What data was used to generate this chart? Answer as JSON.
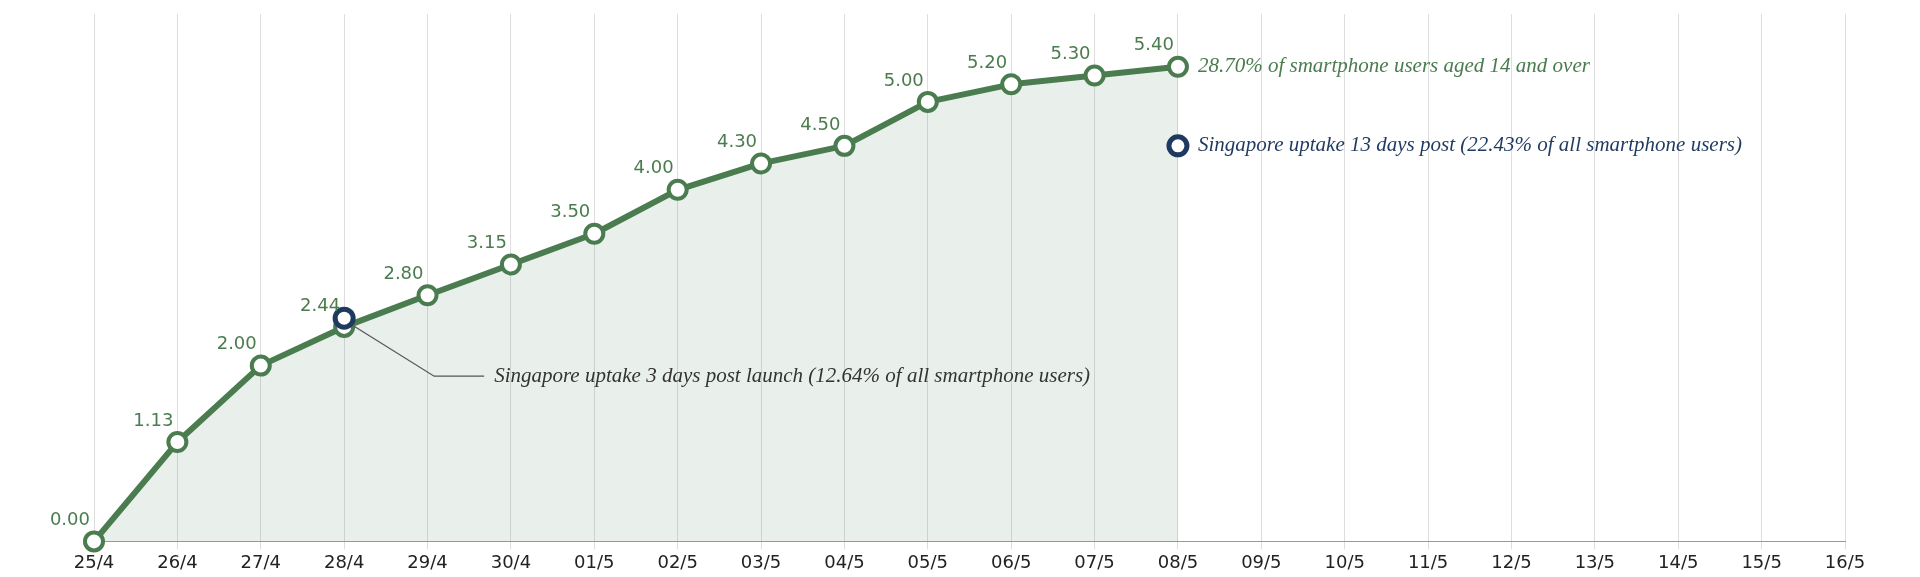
{
  "chart_data": {
    "type": "area",
    "categories": [
      "25/4",
      "26/4",
      "27/4",
      "28/4",
      "29/4",
      "30/4",
      "01/5",
      "02/5",
      "03/5",
      "04/5",
      "05/5",
      "06/5",
      "07/5",
      "08/5",
      "09/5",
      "10/5",
      "11/5",
      "12/5",
      "13/5",
      "14/5",
      "15/5",
      "16/5"
    ],
    "series": [
      {
        "color": "#4a7c4f",
        "values": [
          0,
          1.13,
          2,
          2.44,
          2.8,
          3.15,
          3.5,
          4,
          4.3,
          4.5,
          5,
          5.2,
          5.3,
          5.4,
          null,
          null,
          null,
          null,
          null,
          null,
          null,
          null
        ],
        "value_labels": [
          "0.00",
          "1.13",
          "2.00",
          "2.44",
          "2.80",
          "3.15",
          "3.50",
          "4.00",
          "4.30",
          "4.50",
          "5.00",
          "5.20",
          "5.30",
          "5.40",
          null,
          null,
          null,
          null,
          null,
          null,
          null,
          null
        ]
      },
      {
        "type": "scatter",
        "color": "#1f3a5f",
        "x": [
          "28/4",
          "08/5"
        ],
        "values": [
          2.54,
          4.5
        ]
      }
    ],
    "annotations": [
      {
        "text": "28.70% of smartphone users aged 14 and over",
        "x": "08/5",
        "y": 5.4
      },
      {
        "text": "Singapore uptake 13 days post (22.43% of all smartphone users)",
        "x": "08/5",
        "y": 4.5
      },
      "Singapore uptake 3 days post launch (12.64% of all smartphone users)"
    ],
    "grid": "x",
    "legend": false,
    "marker": "circle"
  }
}
